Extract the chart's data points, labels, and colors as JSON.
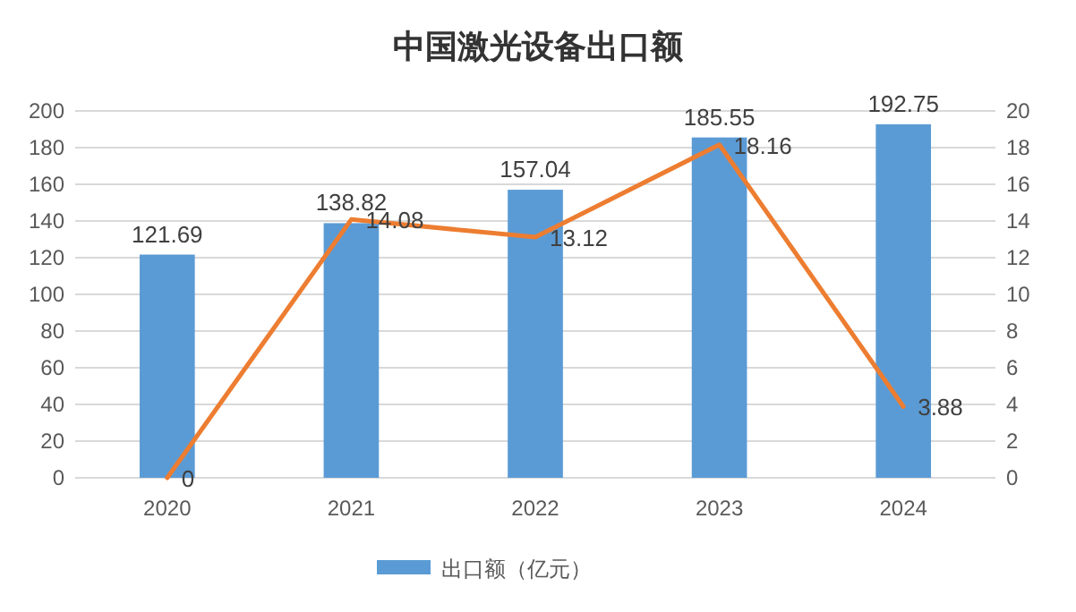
{
  "chart_data": {
    "type": "bar",
    "title": "中国激光设备出口额",
    "categories": [
      "2020",
      "2021",
      "2022",
      "2023",
      "2024"
    ],
    "series": [
      {
        "name": "出口额（亿元）",
        "color": "#5b9bd5",
        "values": [
          121.69,
          138.82,
          157.04,
          185.55,
          192.75
        ]
      },
      {
        "type": "line",
        "axis": "y2",
        "color": "#ed7d31",
        "values": [
          0,
          14.08,
          13.12,
          18.16,
          3.88
        ]
      }
    ],
    "ylim": [
      0,
      200
    ],
    "yticks": [
      0,
      20,
      40,
      60,
      80,
      100,
      120,
      140,
      160,
      180,
      200
    ],
    "y2lim": [
      0,
      20
    ],
    "y2ticks": [
      0,
      2,
      4,
      6,
      8,
      10,
      12,
      14,
      16,
      18,
      20
    ],
    "grid": "y",
    "legend": "bottom",
    "data_labels": true
  }
}
